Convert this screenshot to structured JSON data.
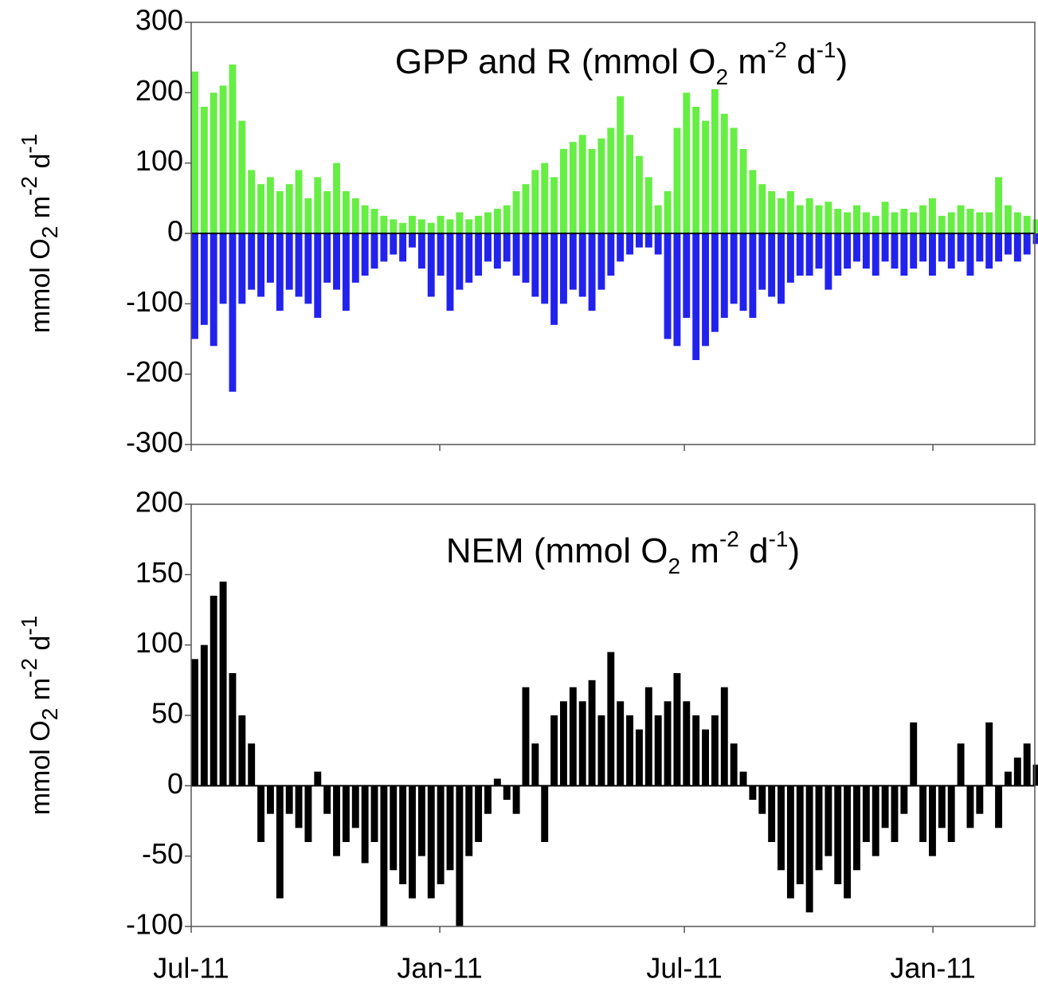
{
  "chart_data": [
    {
      "type": "bar",
      "title": [
        "GPP and R (mmol O",
        "2",
        " m",
        "-2",
        " d",
        "-1",
        ")"
      ],
      "y_label": [
        "mmol O",
        "2",
        " m",
        "-2",
        " d",
        "-1"
      ],
      "ylim": [
        -300,
        300
      ],
      "yticks": [
        -300,
        -200,
        -100,
        0,
        100,
        200,
        300
      ],
      "xlim": [
        0,
        625
      ],
      "x": [
        0,
        7,
        14,
        21,
        28,
        35,
        42,
        49,
        56,
        63,
        70,
        77,
        84,
        91,
        98,
        105,
        112,
        119,
        126,
        133,
        140,
        147,
        154,
        161,
        168,
        175,
        182,
        189,
        196,
        203,
        210,
        217,
        224,
        231,
        238,
        245,
        252,
        259,
        266,
        273,
        280,
        287,
        294,
        301,
        308,
        315,
        322,
        329,
        336,
        343,
        350,
        357,
        364,
        371,
        378,
        385,
        392,
        399,
        406,
        413,
        420,
        427,
        434,
        441,
        448,
        455,
        462,
        469,
        476,
        483,
        490,
        497,
        504,
        511,
        518,
        525,
        532,
        539,
        546,
        553,
        560,
        567,
        574,
        581,
        588,
        595,
        602,
        609,
        616,
        623
      ],
      "series": [
        {
          "color": "#66ee44",
          "values": [
            230,
            180,
            200,
            210,
            240,
            160,
            90,
            70,
            80,
            60,
            70,
            90,
            50,
            80,
            60,
            100,
            60,
            50,
            40,
            35,
            25,
            20,
            15,
            25,
            20,
            15,
            25,
            20,
            30,
            20,
            25,
            30,
            35,
            40,
            60,
            70,
            90,
            100,
            80,
            120,
            130,
            140,
            120,
            135,
            150,
            195,
            140,
            110,
            80,
            40,
            60,
            150,
            200,
            180,
            160,
            205,
            170,
            150,
            120,
            90,
            70,
            60,
            50,
            60,
            40,
            50,
            40,
            45,
            35,
            30,
            40,
            30,
            25,
            45,
            30,
            35,
            30,
            40,
            50,
            25,
            30,
            40,
            35,
            30,
            30,
            80,
            40,
            30,
            25,
            20
          ]
        },
        {
          "color": "#2222ee",
          "values": [
            -150,
            -130,
            -160,
            -100,
            -225,
            -100,
            -80,
            -90,
            -70,
            -110,
            -80,
            -90,
            -100,
            -120,
            -70,
            -80,
            -110,
            -70,
            -60,
            -50,
            -40,
            -30,
            -40,
            -20,
            -50,
            -90,
            -60,
            -110,
            -80,
            -70,
            -60,
            -40,
            -50,
            -40,
            -60,
            -70,
            -90,
            -100,
            -130,
            -100,
            -80,
            -90,
            -110,
            -80,
            -60,
            -40,
            -30,
            -20,
            -20,
            -30,
            -150,
            -160,
            -120,
            -180,
            -160,
            -140,
            -120,
            -100,
            -110,
            -120,
            -80,
            -90,
            -100,
            -70,
            -60,
            -60,
            -50,
            -80,
            -60,
            -50,
            -40,
            -50,
            -60,
            -40,
            -50,
            -60,
            -50,
            -40,
            -60,
            -40,
            -50,
            -40,
            -60,
            -40,
            -50,
            -40,
            -30,
            -40,
            -30,
            -15
          ]
        }
      ]
    },
    {
      "type": "bar",
      "title": [
        "NEM (mmol O",
        "2",
        " m",
        "-2",
        " d",
        "-1",
        ")"
      ],
      "y_label": [
        "mmol O",
        "2",
        " m",
        "-2",
        " d",
        "-1"
      ],
      "ylim": [
        -100,
        200
      ],
      "yticks": [
        -100,
        -50,
        0,
        50,
        100,
        150,
        200
      ],
      "xlim": [
        0,
        625
      ],
      "xticks": [
        {
          "value": 0,
          "label": "Jul-11"
        },
        {
          "value": 184,
          "label": "Jan-11"
        },
        {
          "value": 365,
          "label": "Jul-11"
        },
        {
          "value": 549,
          "label": "Jan-11"
        }
      ],
      "x": [
        0,
        7,
        14,
        21,
        28,
        35,
        42,
        49,
        56,
        63,
        70,
        77,
        84,
        91,
        98,
        105,
        112,
        119,
        126,
        133,
        140,
        147,
        154,
        161,
        168,
        175,
        182,
        189,
        196,
        203,
        210,
        217,
        224,
        231,
        238,
        245,
        252,
        259,
        266,
        273,
        280,
        287,
        294,
        301,
        308,
        315,
        322,
        329,
        336,
        343,
        350,
        357,
        364,
        371,
        378,
        385,
        392,
        399,
        406,
        413,
        420,
        427,
        434,
        441,
        448,
        455,
        462,
        469,
        476,
        483,
        490,
        497,
        504,
        511,
        518,
        525,
        532,
        539,
        546,
        553,
        560,
        567,
        574,
        581,
        588,
        595,
        602,
        609,
        616,
        623
      ],
      "series": [
        {
          "color": "#000000",
          "values": [
            90,
            100,
            135,
            145,
            80,
            50,
            30,
            -40,
            -20,
            -80,
            -20,
            -30,
            -40,
            10,
            -20,
            -50,
            -40,
            -30,
            -55,
            -40,
            -100,
            -60,
            -70,
            -80,
            -50,
            -80,
            -70,
            -60,
            -100,
            -50,
            -40,
            -20,
            5,
            -10,
            -20,
            70,
            30,
            -40,
            50,
            60,
            70,
            60,
            75,
            50,
            95,
            60,
            50,
            40,
            70,
            50,
            60,
            80,
            60,
            50,
            40,
            50,
            70,
            30,
            10,
            -10,
            -20,
            -40,
            -60,
            -80,
            -70,
            -90,
            -60,
            -50,
            -70,
            -80,
            -60,
            -40,
            -50,
            -30,
            -40,
            -20,
            45,
            -40,
            -50,
            -30,
            -40,
            30,
            -30,
            -20,
            45,
            -30,
            10,
            20,
            30,
            15
          ]
        }
      ]
    }
  ]
}
